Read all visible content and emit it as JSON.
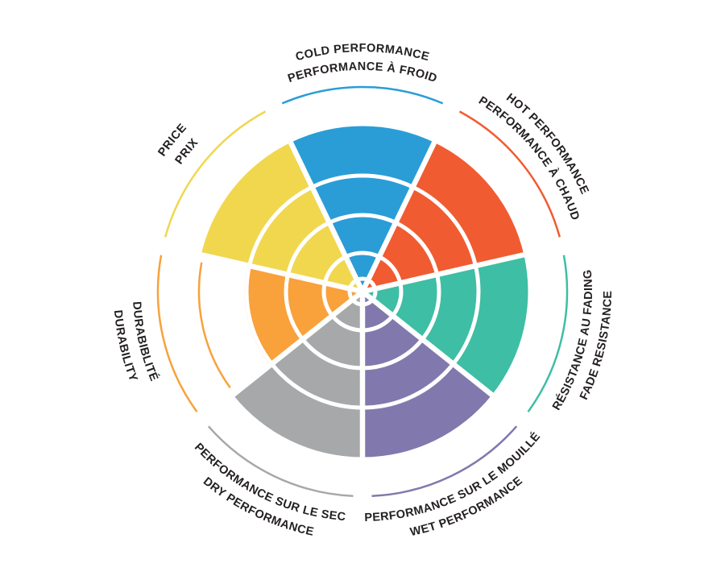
{
  "background": "#ffffff",
  "text_color": "#231f20",
  "chart_data": {
    "type": "radar",
    "subtype": "segmented-polar-wheel",
    "title": "",
    "legend_position": "radial-curved-labels",
    "grid": "concentric-ring-separators",
    "scale": {
      "min": 0,
      "max": 5,
      "rings": 5
    },
    "categories": [
      {
        "id": "cold",
        "label_en": "COLD PERFORMANCE",
        "label_fr": "PERFORMANCE À FROID",
        "value": 4,
        "color": "#2a9dd7"
      },
      {
        "id": "hot",
        "label_en": "HOT PERFORMANCE",
        "label_fr": "PERFORMANCE À CHAUD",
        "value": 4,
        "color": "#f15b31"
      },
      {
        "id": "fade",
        "label_en": "FADE RESISTANCE",
        "label_fr": "RÉSISTANCE AU FADING",
        "value": 4,
        "color": "#3ebea4"
      },
      {
        "id": "wet",
        "label_en": "WET PERFORMANCE",
        "label_fr": "PERFORMANCE SUR LE MOUILLÉ",
        "value": 4,
        "color": "#8179ad"
      },
      {
        "id": "dry",
        "label_en": "DRY PERFORMANCE",
        "label_fr": "PERFORMANCE SUR LE SEC",
        "value": 4,
        "color": "#a7a8aa"
      },
      {
        "id": "durability",
        "label_en": "DURABILITY",
        "label_fr": "DURABIBLITÉ",
        "value": 3,
        "color": "#f9a13b"
      },
      {
        "id": "price",
        "label_en": "PRICE",
        "label_fr": "PRIX",
        "value": 4,
        "color": "#f0d74e"
      }
    ]
  }
}
